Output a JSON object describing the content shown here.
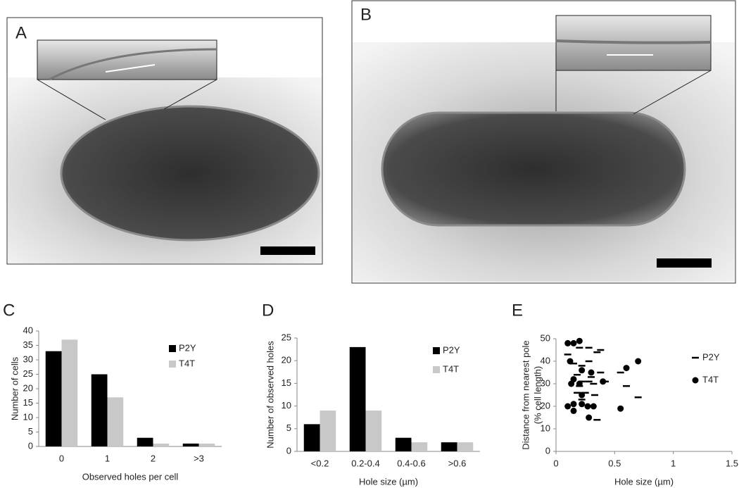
{
  "panel_labels": [
    "A",
    "B",
    "C",
    "D",
    "E"
  ],
  "chart_data": [
    {
      "type": "bar",
      "xlabel": "Observed holes per cell",
      "ylabel": [
        "Number of cells"
      ],
      "categories": [
        "0",
        "1",
        "2",
        ">3"
      ],
      "series": [
        {
          "name": "P2Y",
          "color": "#000000",
          "values": [
            33,
            25,
            3,
            1
          ]
        },
        {
          "name": "T4T",
          "color": "#c8c8c8",
          "values": [
            37,
            17,
            1,
            1
          ]
        }
      ],
      "ylim": [
        0,
        40
      ],
      "yticks": [
        0,
        5,
        10,
        15,
        20,
        25,
        30,
        35,
        40
      ]
    },
    {
      "type": "bar",
      "xlabel": "Hole size (µm)",
      "ylabel": [
        "Number of observed holes"
      ],
      "categories": [
        "<0.2",
        "0.2-0.4",
        "0.4-0.6",
        ">0.6"
      ],
      "series": [
        {
          "name": "P2Y",
          "color": "#000000",
          "values": [
            6,
            23,
            3,
            2
          ]
        },
        {
          "name": "T4T",
          "color": "#c8c8c8",
          "values": [
            9,
            9,
            2,
            2
          ]
        }
      ],
      "ylim": [
        0,
        25
      ],
      "yticks": [
        0,
        5,
        10,
        15,
        20,
        25
      ]
    },
    {
      "type": "scatter",
      "xlabel": "Hole size (µm)",
      "ylabel": [
        "Distance from nearest pole",
        "(% cell length)"
      ],
      "series": [
        {
          "name": "P2Y",
          "color": "#000000",
          "marker": "dash",
          "x": [
            0.1,
            0.2,
            0.28,
            0.35,
            0.38,
            0.15,
            0.28,
            0.22,
            0.38,
            0.18,
            0.3,
            0.28,
            0.22,
            0.2,
            0.32,
            0.42,
            0.18,
            0.25,
            0.33,
            0.22,
            0.55,
            0.6,
            0.7,
            0.35
          ],
          "values": [
            43,
            46,
            46,
            44,
            45,
            39,
            40,
            38,
            35,
            34,
            33,
            31,
            31,
            29,
            30,
            31,
            26,
            26,
            25,
            23,
            35,
            29,
            24,
            14
          ]
        },
        {
          "name": "T4T",
          "color": "#000000",
          "marker": "circle",
          "x": [
            0.1,
            0.15,
            0.2,
            0.12,
            0.22,
            0.3,
            0.4,
            0.15,
            0.13,
            0.2,
            0.6,
            0.7,
            0.22,
            0.1,
            0.15,
            0.15,
            0.22,
            0.27,
            0.32,
            0.28,
            0.55
          ],
          "values": [
            48,
            48,
            49,
            40,
            36,
            35,
            31,
            32,
            30,
            30,
            37,
            40,
            25,
            20,
            21,
            18,
            21,
            20,
            20,
            15,
            19
          ]
        }
      ],
      "xlim": [
        0,
        1.5
      ],
      "xticks": [
        0,
        0.5,
        1,
        1.5
      ],
      "ylim": [
        0,
        50
      ],
      "yticks": [
        0,
        10,
        20,
        30,
        40,
        50
      ]
    }
  ]
}
